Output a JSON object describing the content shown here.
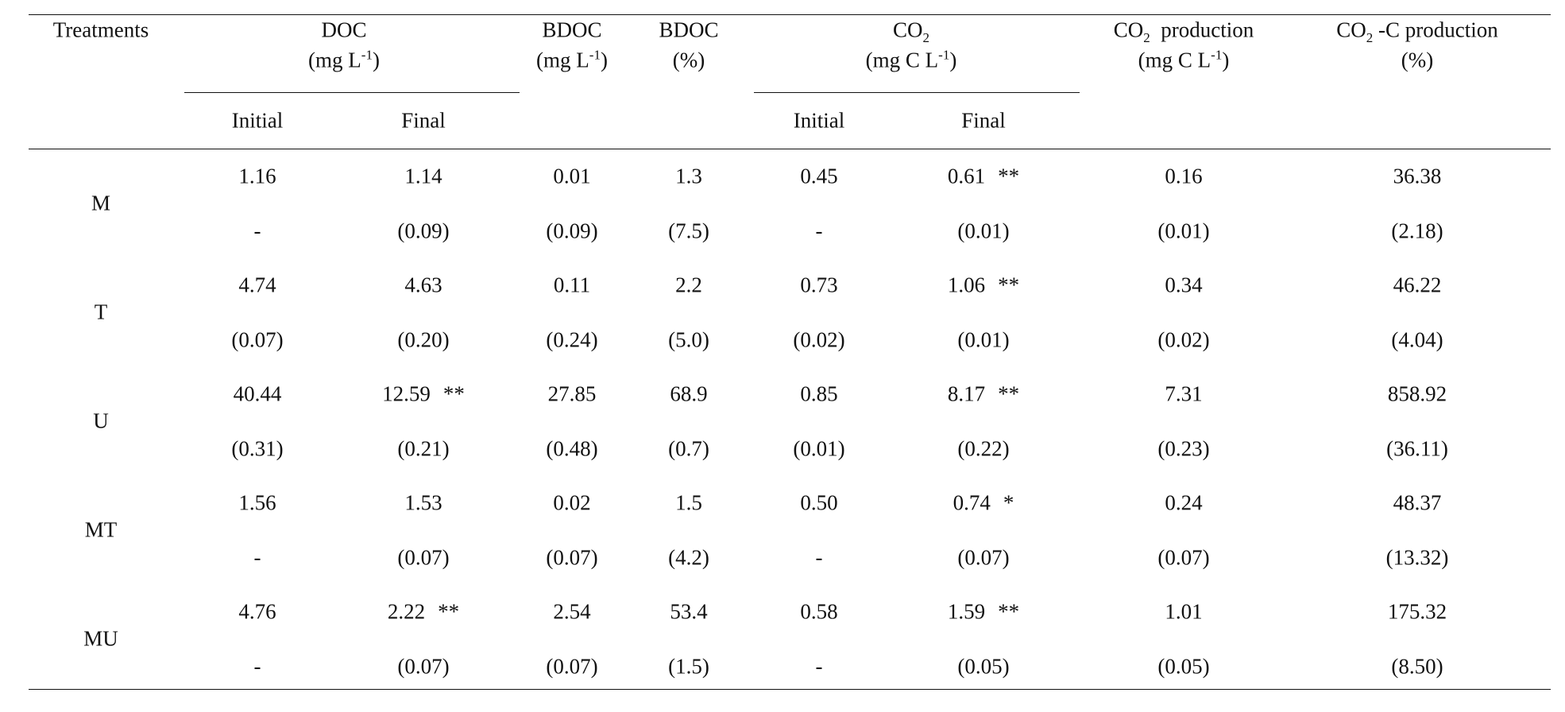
{
  "header": {
    "treatments": "Treatments",
    "doc": {
      "name": "DOC",
      "unit": [
        "(mg L",
        "-1",
        ")"
      ]
    },
    "bdoc": {
      "name": "BDOC",
      "unit": [
        "(mg L",
        "-1",
        ")"
      ]
    },
    "bdoc_pct": {
      "name": "BDOC",
      "unit": "(%)"
    },
    "co2": {
      "name": [
        "CO",
        "2"
      ],
      "unit": [
        "(mg C L",
        "-1",
        ")"
      ]
    },
    "co2_production": {
      "name": [
        "CO",
        "2",
        "production"
      ],
      "unit": [
        "(mg C L",
        "-1",
        ")"
      ]
    },
    "co2c_production": {
      "name": [
        "CO",
        "2",
        "-C production"
      ],
      "unit": "(%)"
    },
    "sub": [
      "Initial",
      "Final",
      "Initial",
      "Final"
    ]
  },
  "rows": [
    {
      "treatment": "M",
      "mean": [
        "1.16",
        {
          "value": "1.14"
        },
        "0.01",
        "1.3",
        "0.45",
        {
          "value": "0.61",
          "sig": "**"
        },
        "0.16",
        "36.38"
      ],
      "sd": [
        "-",
        "(0.09)",
        "(0.09)",
        "(7.5)",
        "-",
        "(0.01)",
        "(0.01)",
        "(2.18)"
      ]
    },
    {
      "treatment": "T",
      "mean": [
        "4.74",
        {
          "value": "4.63"
        },
        "0.11",
        "2.2",
        "0.73",
        {
          "value": "1.06",
          "sig": "**"
        },
        "0.34",
        "46.22"
      ],
      "sd": [
        "(0.07)",
        "(0.20)",
        "(0.24)",
        "(5.0)",
        "(0.02)",
        "(0.01)",
        "(0.02)",
        "(4.04)"
      ]
    },
    {
      "treatment": "U",
      "mean": [
        "40.44",
        {
          "value": "12.59",
          "sig": "**"
        },
        "27.85",
        "68.9",
        "0.85",
        {
          "value": "8.17",
          "sig": "**"
        },
        "7.31",
        "858.92"
      ],
      "sd": [
        "(0.31)",
        "(0.21)",
        "(0.48)",
        "(0.7)",
        "(0.01)",
        "(0.22)",
        "(0.23)",
        "(36.11)"
      ]
    },
    {
      "treatment": "MT",
      "mean": [
        "1.56",
        {
          "value": "1.53"
        },
        "0.02",
        "1.5",
        "0.50",
        {
          "value": "0.74",
          "sig": "*"
        },
        "0.24",
        "48.37"
      ],
      "sd": [
        "-",
        "(0.07)",
        "(0.07)",
        "(4.2)",
        "-",
        "(0.07)",
        "(0.07)",
        "(13.32)"
      ]
    },
    {
      "treatment": "MU",
      "mean": [
        "4.76",
        {
          "value": "2.22",
          "sig": "**"
        },
        "2.54",
        "53.4",
        "0.58",
        {
          "value": "1.59",
          "sig": "**"
        },
        "1.01",
        "175.32"
      ],
      "sd": [
        "-",
        "(0.07)",
        "(0.07)",
        "(1.5)",
        "-",
        "(0.05)",
        "(0.05)",
        "(8.50)"
      ]
    }
  ]
}
